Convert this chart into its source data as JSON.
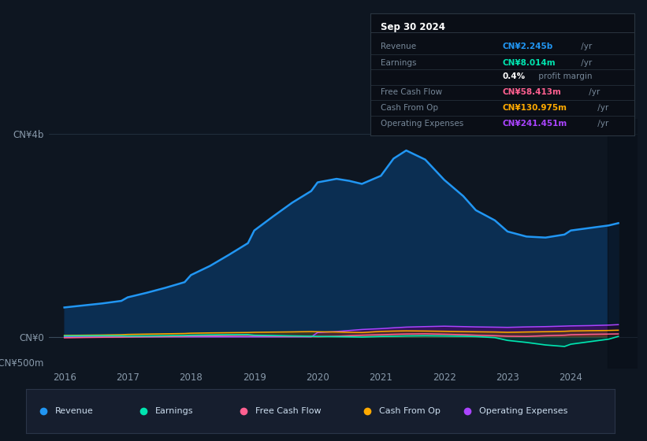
{
  "bg_color": "#0e1621",
  "plot_bg_color": "#0e1621",
  "title_date": "Sep 30 2024",
  "years": [
    2016.0,
    2016.3,
    2016.6,
    2016.9,
    2017.0,
    2017.3,
    2017.6,
    2017.9,
    2018.0,
    2018.3,
    2018.6,
    2018.9,
    2019.0,
    2019.3,
    2019.6,
    2019.9,
    2020.0,
    2020.3,
    2020.5,
    2020.7,
    2021.0,
    2021.2,
    2021.4,
    2021.7,
    2022.0,
    2022.3,
    2022.5,
    2022.8,
    2023.0,
    2023.3,
    2023.6,
    2023.9,
    2024.0,
    2024.3,
    2024.6,
    2024.75
  ],
  "revenue": [
    580,
    620,
    660,
    710,
    780,
    870,
    970,
    1080,
    1220,
    1400,
    1620,
    1850,
    2100,
    2380,
    2650,
    2880,
    3050,
    3120,
    3080,
    3020,
    3180,
    3520,
    3680,
    3500,
    3100,
    2780,
    2500,
    2300,
    2080,
    1980,
    1960,
    2020,
    2100,
    2150,
    2200,
    2245
  ],
  "earnings": [
    18,
    20,
    22,
    20,
    16,
    18,
    22,
    28,
    32,
    38,
    42,
    44,
    32,
    26,
    18,
    12,
    8,
    4,
    0,
    -4,
    8,
    12,
    18,
    22,
    18,
    12,
    6,
    -15,
    -70,
    -110,
    -160,
    -190,
    -145,
    -95,
    -45,
    8
  ],
  "free_cash_flow": [
    -18,
    -12,
    -8,
    -5,
    -3,
    2,
    6,
    12,
    18,
    22,
    26,
    30,
    22,
    16,
    10,
    5,
    2,
    12,
    22,
    32,
    42,
    50,
    56,
    60,
    52,
    42,
    32,
    22,
    12,
    8,
    22,
    32,
    42,
    50,
    55,
    58
  ],
  "cash_from_op": [
    28,
    32,
    36,
    42,
    48,
    54,
    60,
    66,
    72,
    78,
    82,
    86,
    90,
    94,
    98,
    104,
    100,
    96,
    90,
    85,
    108,
    114,
    118,
    115,
    110,
    104,
    100,
    96,
    90,
    96,
    102,
    110,
    116,
    122,
    126,
    131
  ],
  "op_expenses": [
    0,
    0,
    0,
    0,
    0,
    0,
    0,
    0,
    0,
    0,
    0,
    0,
    0,
    0,
    0,
    0,
    85,
    105,
    125,
    145,
    162,
    178,
    192,
    202,
    210,
    202,
    196,
    191,
    187,
    196,
    202,
    212,
    216,
    222,
    232,
    241
  ],
  "revenue_color": "#2196f3",
  "revenue_fill": "#0a2a50",
  "op_exp_color": "#aa44ff",
  "op_exp_fill": "#4a1880",
  "fcf_color": "#ff6090",
  "cash_op_color": "#ffaa00",
  "earnings_color": "#00e5b0",
  "ylim_min": -620,
  "ylim_max": 4300,
  "ytick_labels": [
    "CN¥4b",
    "CN¥0",
    "-CN¥500m"
  ],
  "ytick_values": [
    4000,
    0,
    -500
  ],
  "xtick_labels": [
    "2016",
    "2017",
    "2018",
    "2019",
    "2020",
    "2021",
    "2022",
    "2023",
    "2024"
  ],
  "xtick_values": [
    2016,
    2017,
    2018,
    2019,
    2020,
    2021,
    2022,
    2023,
    2024
  ],
  "legend_items": [
    {
      "label": "Revenue",
      "color": "#2196f3"
    },
    {
      "label": "Earnings",
      "color": "#00e5b0"
    },
    {
      "label": "Free Cash Flow",
      "color": "#ff6090"
    },
    {
      "label": "Cash From Op",
      "color": "#ffaa00"
    },
    {
      "label": "Operating Expenses",
      "color": "#aa44ff"
    }
  ],
  "info_rows": [
    {
      "label": "Revenue",
      "value": "CN¥2.245b",
      "suffix": " /yr",
      "value_color": "#2196f3"
    },
    {
      "label": "Earnings",
      "value": "CN¥8.014m",
      "suffix": " /yr",
      "value_color": "#00e5b0"
    },
    {
      "label": "",
      "value": "0.4%",
      "suffix": " profit margin",
      "value_color": "#ffffff"
    },
    {
      "label": "Free Cash Flow",
      "value": "CN¥58.413m",
      "suffix": " /yr",
      "value_color": "#ff6090"
    },
    {
      "label": "Cash From Op",
      "value": "CN¥130.975m",
      "suffix": " /yr",
      "value_color": "#ffaa00"
    },
    {
      "label": "Operating Expenses",
      "value": "CN¥241.451m",
      "suffix": " /yr",
      "value_color": "#aa44ff"
    }
  ]
}
